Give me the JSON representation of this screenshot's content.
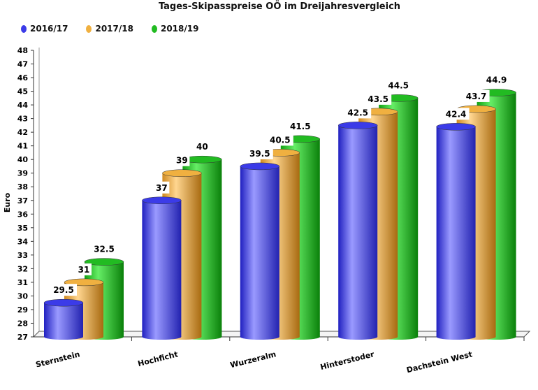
{
  "chart_data": {
    "type": "bar",
    "title": "Tages-Skipasspreise OÖ im Dreijahresvergleich",
    "xlabel": "",
    "ylabel": "Euro",
    "ylim": [
      27,
      48
    ],
    "yticks": [
      27,
      28,
      29,
      30,
      31,
      32,
      33,
      34,
      35,
      36,
      37,
      38,
      39,
      40,
      41,
      42,
      43,
      44,
      45,
      46,
      47,
      48
    ],
    "categories": [
      "Sternstein",
      "Hochficht",
      "Wurzeralm",
      "Hinterstoder",
      "Dachstein West"
    ],
    "series": [
      {
        "name": "2016/17",
        "color": "#3b3be8",
        "values": [
          29.5,
          37,
          39.5,
          42.5,
          42.4
        ]
      },
      {
        "name": "2017/18",
        "color": "#f0b040",
        "values": [
          31,
          39,
          40.5,
          43.5,
          43.7
        ]
      },
      {
        "name": "2018/19",
        "color": "#22bb22",
        "values": [
          32.5,
          40,
          41.5,
          44.5,
          44.9
        ]
      }
    ],
    "grid": false,
    "legend_position": "top-left",
    "style": "3d-cylinder"
  }
}
